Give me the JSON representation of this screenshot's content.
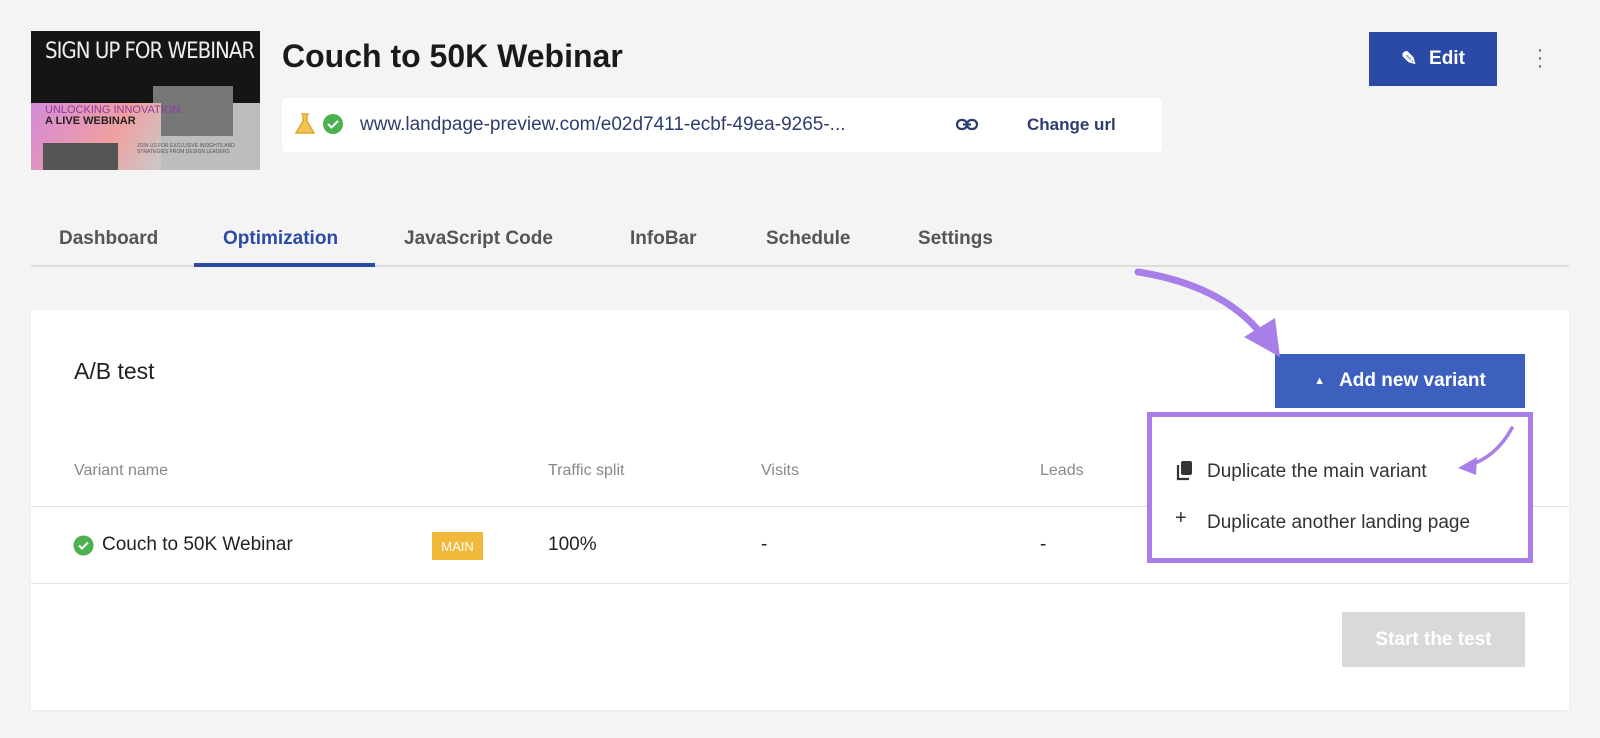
{
  "thumbnail": {
    "headline": "SIGN UP FOR WEBINAR",
    "sub1": "UNLOCKING INNOVATION:",
    "sub2": "A LIVE WEBINAR",
    "tagline": "JOIN US FOR EXCLUSIVE INSIGHTS AND STRATEGIES FROM DESIGN LEADERS"
  },
  "header": {
    "title": "Couch to 50K Webinar",
    "url": "www.landpage-preview.com/e02d7411-ecbf-49ea-9265-...",
    "change_url": "Change url",
    "edit": "Edit"
  },
  "tabs": [
    {
      "label": "Dashboard"
    },
    {
      "label": "Optimization",
      "active": true
    },
    {
      "label": "JavaScript Code"
    },
    {
      "label": "InfoBar"
    },
    {
      "label": "Schedule"
    },
    {
      "label": "Settings"
    }
  ],
  "ab": {
    "title": "A/B test",
    "add_variant": "Add new variant",
    "columns": [
      "Variant name",
      "Traffic split",
      "Visits",
      "Leads"
    ],
    "rows": [
      {
        "name": "Couch to 50K Webinar",
        "badge": "MAIN",
        "traffic": "100%",
        "visits": "-",
        "leads": "-"
      }
    ],
    "start": "Start the test"
  },
  "dropdown": {
    "items": [
      {
        "label": "Duplicate the main variant",
        "icon": "copy-icon"
      },
      {
        "label": "Duplicate another landing page",
        "icon": "plus-icon"
      }
    ]
  },
  "colors": {
    "primary": "#2b4aa5",
    "annotation": "#a87ee8",
    "badge": "#f0b93a",
    "success": "#4caf50"
  }
}
